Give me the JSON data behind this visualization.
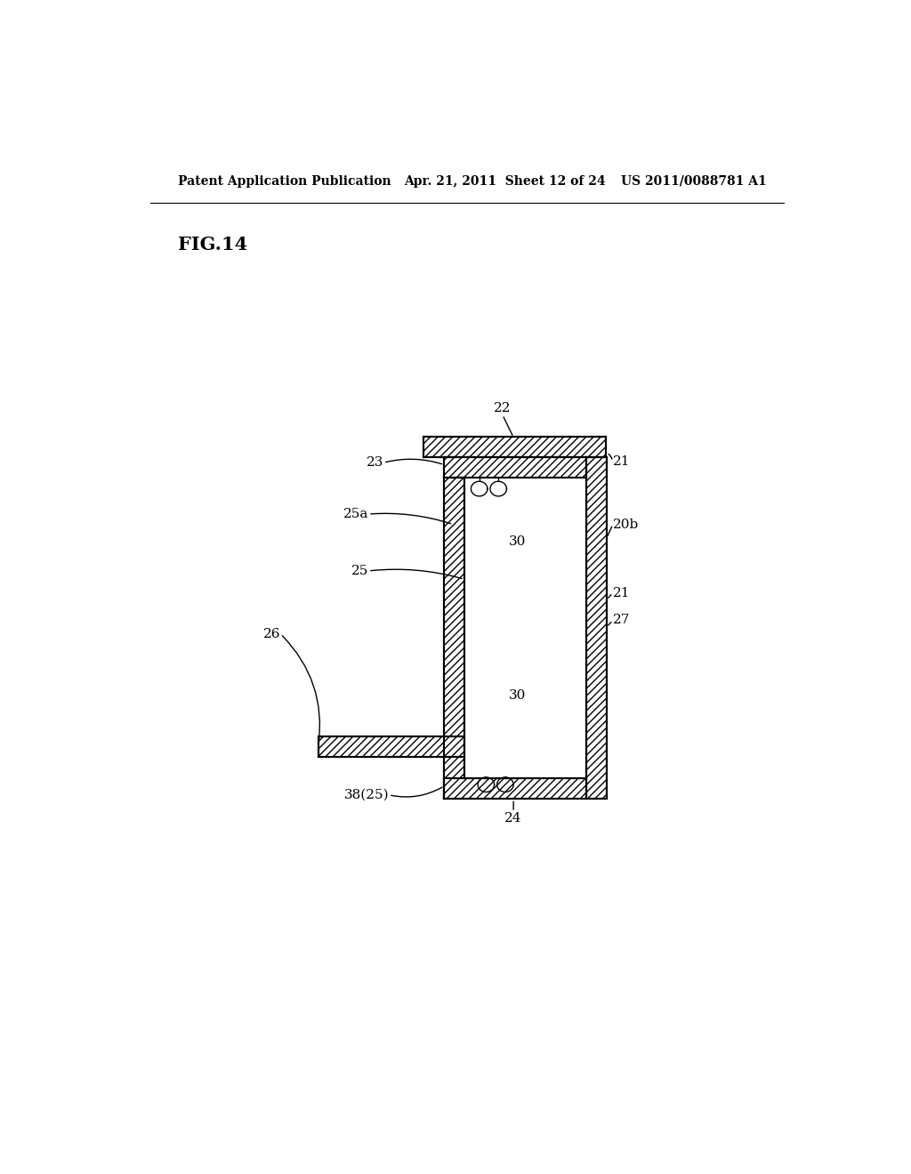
{
  "bg_color": "#ffffff",
  "line_color": "#000000",
  "header_text": "Patent Application Publication",
  "header_date": "Apr. 21, 2011  Sheet 12 of 24",
  "header_patent": "US 2011/0088781 A1",
  "fig_label": "FIG.14"
}
